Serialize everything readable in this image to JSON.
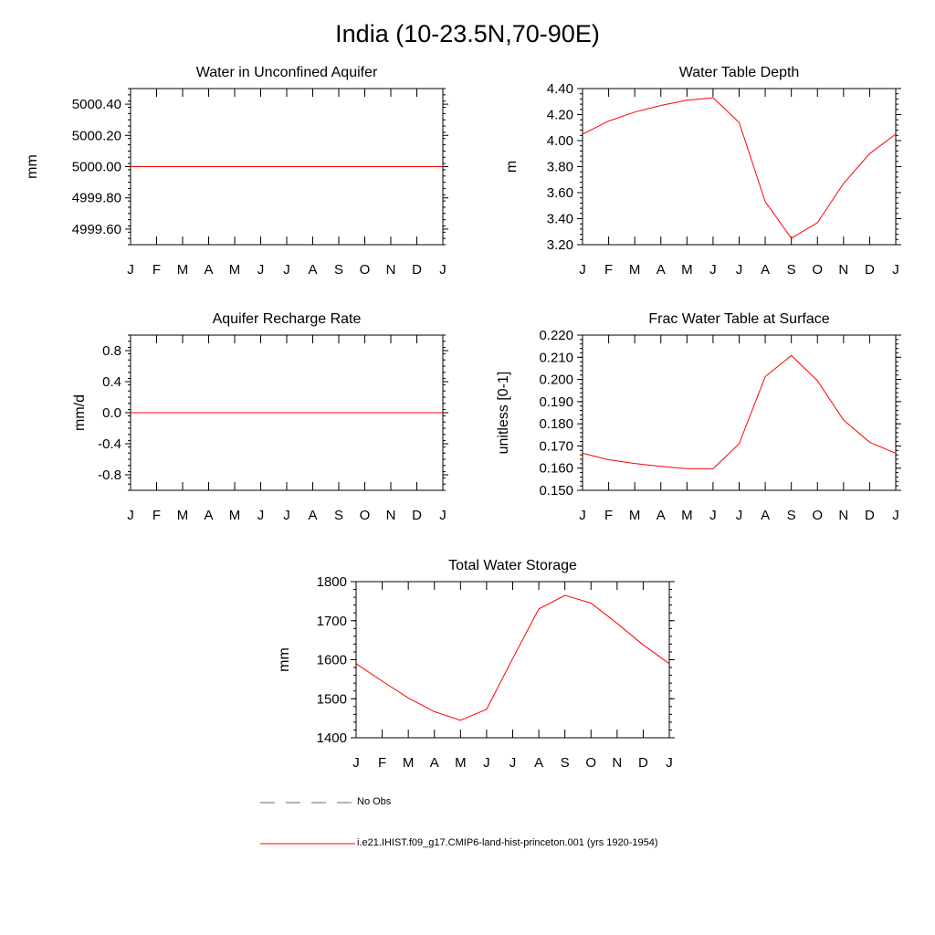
{
  "page": {
    "title": "India (10-23.5N,70-90E)"
  },
  "month_labels": [
    "J",
    "F",
    "M",
    "A",
    "M",
    "J",
    "J",
    "A",
    "S",
    "O",
    "N",
    "D",
    "J"
  ],
  "colors": {
    "model": "#ff0000",
    "obs": "#888888",
    "axis": "#000000"
  },
  "legend": {
    "obs_label": "No Obs",
    "model_label": "i.e21.IHIST.f09_g17.CMIP6-land-hist-princeton.001 (yrs 1920-1954)"
  },
  "chart_data": [
    {
      "id": "unconfined",
      "type": "line",
      "title": "Water in Unconfined Aquifer",
      "ylabel": "mm",
      "ylim": [
        4999.5,
        5000.5
      ],
      "yticks": [
        4999.6,
        4999.8,
        5000.0,
        5000.2,
        5000.4
      ],
      "ytick_labels": [
        "4999.60",
        "4999.80",
        "5000.00",
        "5000.20",
        "5000.40"
      ],
      "x": [
        "J",
        "F",
        "M",
        "A",
        "M",
        "J",
        "J",
        "A",
        "S",
        "O",
        "N",
        "D",
        "J"
      ],
      "series": [
        {
          "values": [
            5000,
            5000,
            5000,
            5000,
            5000,
            5000,
            5000,
            5000,
            5000,
            5000,
            5000,
            5000,
            5000
          ]
        }
      ]
    },
    {
      "id": "wtd",
      "type": "line",
      "title": "Water Table Depth",
      "ylabel": "m",
      "ylim": [
        3.2,
        4.4
      ],
      "yticks": [
        3.2,
        3.4,
        3.6,
        3.8,
        4.0,
        4.2,
        4.4
      ],
      "ytick_labels": [
        "3.20",
        "3.40",
        "3.60",
        "3.80",
        "4.00",
        "4.20",
        "4.40"
      ],
      "x": [
        "J",
        "F",
        "M",
        "A",
        "M",
        "J",
        "J",
        "A",
        "S",
        "O",
        "N",
        "D",
        "J"
      ],
      "series": [
        {
          "values": [
            4.05,
            4.15,
            4.22,
            4.27,
            4.31,
            4.33,
            4.14,
            3.53,
            3.25,
            3.37,
            3.67,
            3.9,
            4.05
          ]
        }
      ]
    },
    {
      "id": "recharge",
      "type": "line",
      "title": "Aquifer Recharge Rate",
      "ylabel": "mm/d",
      "ylim": [
        -1.0,
        1.0
      ],
      "yticks": [
        -0.8,
        -0.4,
        0.0,
        0.4,
        0.8
      ],
      "ytick_labels": [
        "-0.8",
        "-0.4",
        "0.0",
        "0.4",
        "0.8"
      ],
      "x": [
        "J",
        "F",
        "M",
        "A",
        "M",
        "J",
        "J",
        "A",
        "S",
        "O",
        "N",
        "D",
        "J"
      ],
      "series": [
        {
          "values": [
            0,
            0,
            0,
            0,
            0,
            0,
            0,
            0,
            0,
            0,
            0,
            0,
            0
          ]
        }
      ]
    },
    {
      "id": "frac",
      "type": "line",
      "title": "Frac Water Table at Surface",
      "ylabel": "unitless [0-1]",
      "ylim": [
        0.15,
        0.22
      ],
      "yticks": [
        0.15,
        0.16,
        0.17,
        0.18,
        0.19,
        0.2,
        0.21,
        0.22
      ],
      "ytick_labels": [
        "0.150",
        "0.160",
        "0.170",
        "0.180",
        "0.190",
        "0.200",
        "0.210",
        "0.220"
      ],
      "x": [
        "J",
        "F",
        "M",
        "A",
        "M",
        "J",
        "J",
        "A",
        "S",
        "O",
        "N",
        "D",
        "J"
      ],
      "series": [
        {
          "values": [
            0.1667,
            0.1638,
            0.1621,
            0.1608,
            0.1598,
            0.1597,
            0.171,
            0.2013,
            0.2108,
            0.1994,
            0.1817,
            0.1717,
            0.1667
          ]
        }
      ]
    },
    {
      "id": "tws",
      "type": "line",
      "title": "Total Water Storage",
      "ylabel": "mm",
      "ylim": [
        1400,
        1800
      ],
      "yticks": [
        1400,
        1500,
        1600,
        1700,
        1800
      ],
      "ytick_labels": [
        "1400",
        "1500",
        "1600",
        "1700",
        "1800"
      ],
      "x": [
        "J",
        "F",
        "M",
        "A",
        "M",
        "J",
        "J",
        "A",
        "S",
        "O",
        "N",
        "D",
        "J"
      ],
      "series": [
        {
          "values": [
            1590,
            1545,
            1502,
            1467,
            1445,
            1473,
            1603,
            1730,
            1765,
            1745,
            1693,
            1638,
            1590
          ]
        }
      ]
    }
  ]
}
